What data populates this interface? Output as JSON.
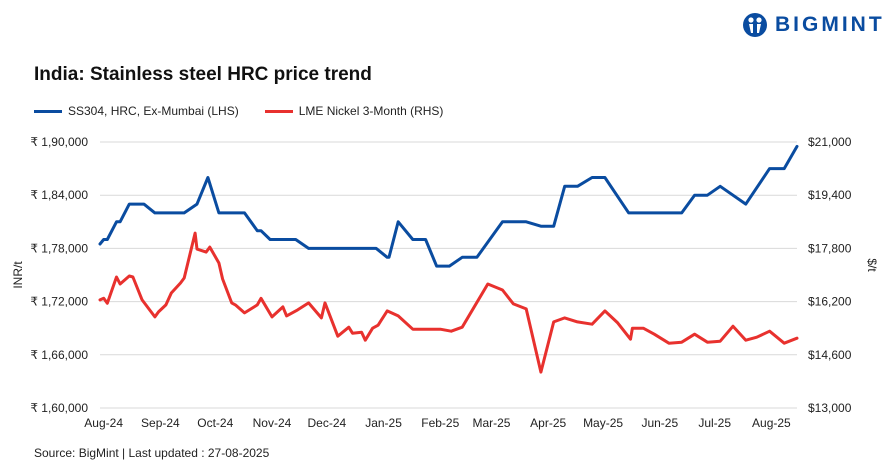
{
  "brand": {
    "logo_text": "BIGMINT",
    "color": "#0a4ca0"
  },
  "footer": {
    "source": "Source: BigMint | Last updated : 27-08-2025"
  },
  "chart_data": {
    "type": "line",
    "title": "India: Stainless steel HRC price trend",
    "legend_position": "top-left",
    "grid": true,
    "xlim": [
      "2024-07-30",
      "2025-08-15"
    ],
    "x_ticks": [
      {
        "date": "2024-08-01",
        "label": "Aug-24"
      },
      {
        "date": "2024-09-01",
        "label": "Sep-24"
      },
      {
        "date": "2024-10-01",
        "label": "Oct-24"
      },
      {
        "date": "2024-11-01",
        "label": "Nov-24"
      },
      {
        "date": "2024-12-01",
        "label": "Dec-24"
      },
      {
        "date": "2025-01-01",
        "label": "Jan-25"
      },
      {
        "date": "2025-02-01",
        "label": "Feb-25"
      },
      {
        "date": "2025-03-01",
        "label": "Mar-25"
      },
      {
        "date": "2025-04-01",
        "label": "Apr-25"
      },
      {
        "date": "2025-05-01",
        "label": "May-25"
      },
      {
        "date": "2025-06-01",
        "label": "Jun-25"
      },
      {
        "date": "2025-07-01",
        "label": "Jul-25"
      },
      {
        "date": "2025-08-01",
        "label": "Aug-25"
      }
    ],
    "y_left": {
      "label": "INR/t",
      "ylim": [
        160000,
        190000
      ],
      "ticks": [
        {
          "value": 160000,
          "label": "₹ 1,60,000"
        },
        {
          "value": 166000,
          "label": "₹ 1,66,000"
        },
        {
          "value": 172000,
          "label": "₹ 1,72,000"
        },
        {
          "value": 178000,
          "label": "₹ 1,78,000"
        },
        {
          "value": 184000,
          "label": "₹ 1,84,000"
        },
        {
          "value": 190000,
          "label": "₹ 1,90,000"
        }
      ]
    },
    "y_right": {
      "label": "$/t",
      "ylim": [
        13000,
        21000
      ],
      "ticks": [
        {
          "value": 13000,
          "label": "$13,000"
        },
        {
          "value": 14600,
          "label": "$14,600"
        },
        {
          "value": 16200,
          "label": "$16,200"
        },
        {
          "value": 17800,
          "label": "$17,800"
        },
        {
          "value": 19400,
          "label": "$19,400"
        },
        {
          "value": 21000,
          "label": "$21,000"
        }
      ]
    },
    "series": [
      {
        "name": "SS304, HRC, Ex-Mumbai (LHS)",
        "axis": "left",
        "color": "#0a4ca0",
        "points": [
          [
            "2024-07-30",
            178500
          ],
          [
            "2024-08-01",
            179000
          ],
          [
            "2024-08-03",
            179000
          ],
          [
            "2024-08-08",
            181000
          ],
          [
            "2024-08-10",
            181000
          ],
          [
            "2024-08-15",
            183000
          ],
          [
            "2024-08-23",
            183000
          ],
          [
            "2024-08-29",
            182000
          ],
          [
            "2024-09-14",
            182000
          ],
          [
            "2024-09-21",
            183000
          ],
          [
            "2024-09-27",
            186000
          ],
          [
            "2024-10-03",
            182000
          ],
          [
            "2024-10-17",
            182000
          ],
          [
            "2024-10-24",
            180000
          ],
          [
            "2024-10-26",
            180000
          ],
          [
            "2024-10-31",
            179000
          ],
          [
            "2024-11-14",
            179000
          ],
          [
            "2024-11-21",
            178000
          ],
          [
            "2024-12-28",
            178000
          ],
          [
            "2025-01-03",
            177000
          ],
          [
            "2025-01-04",
            177000
          ],
          [
            "2025-01-09",
            181000
          ],
          [
            "2025-01-17",
            179000
          ],
          [
            "2025-01-24",
            179000
          ],
          [
            "2025-01-30",
            176000
          ],
          [
            "2025-02-06",
            176000
          ],
          [
            "2025-02-13",
            177000
          ],
          [
            "2025-02-21",
            177000
          ],
          [
            "2025-03-07",
            181000
          ],
          [
            "2025-03-20",
            181000
          ],
          [
            "2025-03-28",
            180500
          ],
          [
            "2025-04-04",
            180500
          ],
          [
            "2025-04-10",
            185000
          ],
          [
            "2025-04-17",
            185000
          ],
          [
            "2025-04-25",
            186000
          ],
          [
            "2025-05-02",
            186000
          ],
          [
            "2025-05-15",
            182000
          ],
          [
            "2025-06-13",
            182000
          ],
          [
            "2025-06-20",
            184000
          ],
          [
            "2025-06-27",
            184000
          ],
          [
            "2025-07-04",
            185000
          ],
          [
            "2025-07-18",
            183000
          ],
          [
            "2025-07-31",
            187000
          ],
          [
            "2025-08-08",
            187000
          ],
          [
            "2025-08-15",
            189500
          ]
        ]
      },
      {
        "name": "LME Nickel 3-Month (RHS)",
        "axis": "right",
        "color": "#e8312e",
        "points": [
          [
            "2024-07-30",
            16250
          ],
          [
            "2024-08-01",
            16300
          ],
          [
            "2024-08-03",
            16150
          ],
          [
            "2024-08-08",
            16940
          ],
          [
            "2024-08-10",
            16730
          ],
          [
            "2024-08-15",
            16970
          ],
          [
            "2024-08-17",
            16940
          ],
          [
            "2024-08-22",
            16250
          ],
          [
            "2024-08-29",
            15740
          ],
          [
            "2024-08-31",
            15890
          ],
          [
            "2024-09-04",
            16100
          ],
          [
            "2024-09-07",
            16460
          ],
          [
            "2024-09-12",
            16760
          ],
          [
            "2024-09-14",
            16910
          ],
          [
            "2024-09-20",
            18260
          ],
          [
            "2024-09-21",
            17780
          ],
          [
            "2024-09-26",
            17690
          ],
          [
            "2024-09-28",
            17840
          ],
          [
            "2024-10-03",
            17360
          ],
          [
            "2024-10-05",
            16880
          ],
          [
            "2024-10-10",
            16160
          ],
          [
            "2024-10-12",
            16100
          ],
          [
            "2024-10-17",
            15860
          ],
          [
            "2024-10-24",
            16100
          ],
          [
            "2024-10-26",
            16300
          ],
          [
            "2024-11-01",
            15740
          ],
          [
            "2024-11-07",
            16040
          ],
          [
            "2024-11-09",
            15770
          ],
          [
            "2024-11-15",
            15950
          ],
          [
            "2024-11-21",
            16160
          ],
          [
            "2024-11-28",
            15710
          ],
          [
            "2024-11-30",
            16160
          ],
          [
            "2024-12-07",
            15160
          ],
          [
            "2024-12-13",
            15430
          ],
          [
            "2024-12-15",
            15250
          ],
          [
            "2024-12-20",
            15280
          ],
          [
            "2024-12-22",
            15040
          ],
          [
            "2024-12-26",
            15400
          ],
          [
            "2024-12-29",
            15490
          ],
          [
            "2025-01-03",
            15920
          ],
          [
            "2025-01-09",
            15770
          ],
          [
            "2025-01-17",
            15370
          ],
          [
            "2025-02-01",
            15370
          ],
          [
            "2025-02-07",
            15310
          ],
          [
            "2025-02-13",
            15430
          ],
          [
            "2025-02-27",
            16730
          ],
          [
            "2025-03-07",
            16550
          ],
          [
            "2025-03-13",
            16130
          ],
          [
            "2025-03-20",
            15980
          ],
          [
            "2025-03-28",
            14080
          ],
          [
            "2025-04-04",
            15590
          ],
          [
            "2025-04-10",
            15710
          ],
          [
            "2025-04-17",
            15590
          ],
          [
            "2025-04-25",
            15520
          ],
          [
            "2025-05-02",
            15920
          ],
          [
            "2025-05-09",
            15560
          ],
          [
            "2025-05-16",
            15070
          ],
          [
            "2025-05-17",
            15400
          ],
          [
            "2025-05-23",
            15400
          ],
          [
            "2025-05-29",
            15220
          ],
          [
            "2025-06-06",
            14950
          ],
          [
            "2025-06-13",
            14980
          ],
          [
            "2025-06-20",
            15220
          ],
          [
            "2025-06-27",
            14980
          ],
          [
            "2025-07-04",
            15010
          ],
          [
            "2025-07-11",
            15460
          ],
          [
            "2025-07-18",
            15040
          ],
          [
            "2025-07-24",
            15130
          ],
          [
            "2025-07-31",
            15310
          ],
          [
            "2025-08-08",
            14950
          ],
          [
            "2025-08-15",
            15100
          ]
        ]
      }
    ]
  }
}
